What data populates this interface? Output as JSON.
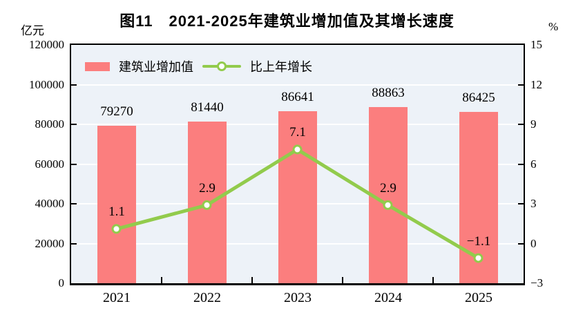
{
  "header": {
    "title": "图11　2021-2025年建筑业增加值及其增长速度",
    "left_unit": "亿元",
    "right_unit": "%"
  },
  "legend": {
    "items": [
      {
        "label": "建筑业增加值",
        "type": "bar",
        "color": "#FB7E7E"
      },
      {
        "label": "比上年增长",
        "type": "line",
        "color": "#92CB4C"
      }
    ]
  },
  "chart_data": {
    "type": "bar",
    "title": "图11　2021-2025年建筑业增加值及其增长速度",
    "categories": [
      "2021",
      "2022",
      "2023",
      "2024",
      "2025"
    ],
    "series": [
      {
        "name": "建筑业增加值",
        "type": "bar",
        "axis": "left",
        "unit": "亿元",
        "values": [
          79270,
          81440,
          86641,
          88863,
          86425
        ],
        "labels": [
          "79270",
          "81440",
          "86641",
          "88863",
          "86425"
        ],
        "color": "#FB7E7E"
      },
      {
        "name": "比上年增长",
        "type": "line",
        "axis": "right",
        "unit": "%",
        "values": [
          1.1,
          2.9,
          7.1,
          2.9,
          -1.1
        ],
        "labels": [
          "1.1",
          "2.9",
          "7.1",
          "2.9",
          "−1.1"
        ],
        "color": "#92CB4C",
        "marker": {
          "fill": "#FFFFFF",
          "stroke": "#92CB4C"
        }
      }
    ],
    "left_axis": {
      "unit": "亿元",
      "min": 0,
      "max": 120000,
      "step": 20000,
      "ticks": [
        "120000",
        "100000",
        "80000",
        "60000",
        "40000",
        "20000",
        "0"
      ]
    },
    "right_axis": {
      "unit": "%",
      "min": -3,
      "max": 15,
      "step": 3,
      "ticks": [
        "15",
        "12",
        "9",
        "6",
        "3",
        "0",
        "−3"
      ]
    },
    "grid": true,
    "grid_color": "#FFFFFF",
    "plot_bg": "#EDF2F8",
    "legend_position": "top-left-inside"
  }
}
